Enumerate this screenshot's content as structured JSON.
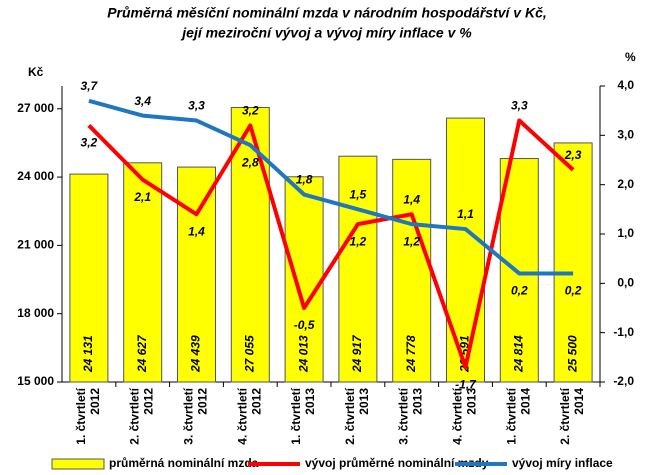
{
  "chart_data": {
    "type": "bar-line",
    "title": [
      "Průměrná měsíční nominální mzda v národním hospodářství v Kč,",
      "její meziroční vývoj a vývoj míry inflace v %"
    ],
    "ylabel": "Kč",
    "y2label": "%",
    "categories": [
      "1. čtvrtletí 2012",
      "2. čtvrtletí 2012",
      "3. čtvrtletí 2012",
      "4. čtvrtletí 2012",
      "1. čtvrtletí 2013",
      "2. čtvrtletí 2013",
      "3. čtvrtletí 2013",
      "4. čtvrtletí 2013",
      "1. čtvrtletí 2014",
      "2. čtvrtletí 2014"
    ],
    "ylim": [
      15000,
      28000
    ],
    "yticks": [
      {
        "value": 15000,
        "label": "15 000"
      },
      {
        "value": 18000,
        "label": "18 000"
      },
      {
        "value": 21000,
        "label": "21 000"
      },
      {
        "value": 24000,
        "label": "24 000"
      },
      {
        "value": 27000,
        "label": "27 000"
      }
    ],
    "y2lim": [
      -2,
      4
    ],
    "y2ticks": [
      {
        "value": -2,
        "label": "-2,0"
      },
      {
        "value": -1,
        "label": "-1,0"
      },
      {
        "value": 0,
        "label": "0,0"
      },
      {
        "value": 1,
        "label": "1,0"
      },
      {
        "value": 2,
        "label": "2,0"
      },
      {
        "value": 3,
        "label": "3,0"
      },
      {
        "value": 4,
        "label": "4,0"
      }
    ],
    "series": [
      {
        "name": "průměrná nominální mzda",
        "type": "bar",
        "color": "#ffff00",
        "values": [
          24131,
          24627,
          24439,
          27055,
          24013,
          24917,
          24778,
          26591,
          24814,
          25500
        ],
        "value_labels": [
          "24 131",
          "24 627",
          "24 439",
          "27 055",
          "24 013",
          "24 917",
          "24 778",
          "26 591",
          "24 814",
          "25 500"
        ]
      },
      {
        "name": "vývoj průměrné nominální mzdy",
        "type": "line",
        "axis": "y2",
        "color": "#ff0000",
        "values": [
          3.2,
          2.1,
          1.4,
          3.2,
          -0.5,
          1.2,
          1.4,
          -1.7,
          3.3,
          2.3
        ],
        "value_labels": [
          "3,2",
          "2,1",
          "1,4",
          "3,2",
          "-0,5",
          "1,2",
          "1,4",
          "-1,7",
          "3,3",
          "2,3"
        ]
      },
      {
        "name": "vývoj míry inflace",
        "type": "line",
        "axis": "y2",
        "color": "#1f77c0",
        "values": [
          3.7,
          3.4,
          3.3,
          2.8,
          1.8,
          1.5,
          1.2,
          1.1,
          0.2,
          0.2
        ],
        "value_labels": [
          "3,7",
          "3,4",
          "3,3",
          "2,8",
          "1,8",
          "1,5",
          "1,2",
          "1,1",
          "0,2",
          "0,2"
        ]
      }
    ]
  }
}
